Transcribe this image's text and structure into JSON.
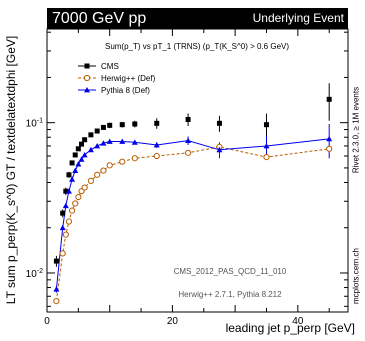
{
  "header": {
    "left": "7000 GeV pp",
    "right": "Underlying Event"
  },
  "side": {
    "ylabel": "LT sum p_perp(K_s^0) GT / textdelatextdphi [GeV]",
    "right_label": "Rivet 2.3.0, ≥ 1M events",
    "site": "mcplots.cern.ch"
  },
  "annotations": {
    "analysis": "CMS_2012_PAS_QCD_11_010",
    "generators": "Herwig++ 2.7.1, Pythia 8.212"
  },
  "chart_data": {
    "type": "line",
    "title": "Sum(p_T) vs pT_1 (TRNS) (p_T(K_S^0) > 0.6 GeV)",
    "xlabel": "leading jet p_perp [GeV]",
    "ylabel": "LT sum p_perp(K_s^0) GT / textdelatextdphi [GeV]",
    "xlim": [
      0,
      48
    ],
    "ylim": [
      0.0055,
      0.42
    ],
    "yscale": "log",
    "xticks": [
      0,
      20,
      40
    ],
    "yticks": [
      0.01,
      0.1
    ],
    "ytick_labels": [
      "10^-2",
      "10^-1"
    ],
    "legend_position": "top-left",
    "series": [
      {
        "name": "CMS",
        "color": "#000000",
        "marker": "square",
        "line": "none",
        "x": [
          1.5,
          2.5,
          3.0,
          3.5,
          4.0,
          4.5,
          5.0,
          5.5,
          6.0,
          7.0,
          8.0,
          9.0,
          10.0,
          12.0,
          14.0,
          17.5,
          22.5,
          27.5,
          35.0,
          45.0
        ],
        "y": [
          0.012,
          0.025,
          0.035,
          0.045,
          0.054,
          0.061,
          0.067,
          0.072,
          0.077,
          0.083,
          0.088,
          0.093,
          0.096,
          0.097,
          0.098,
          0.099,
          0.105,
          0.099,
          0.097,
          0.143
        ],
        "y_err": [
          0.001,
          0.0015,
          0.002,
          0.002,
          0.002,
          0.002,
          0.002,
          0.002,
          0.002,
          0.002,
          0.003,
          0.003,
          0.004,
          0.004,
          0.005,
          0.008,
          0.01,
          0.012,
          0.018,
          0.04
        ]
      },
      {
        "name": "Herwig++ (Def)",
        "color": "#b85c00",
        "marker": "open-circle",
        "line": "dashed",
        "x": [
          1.5,
          2.5,
          3.0,
          3.5,
          4.0,
          4.5,
          5.0,
          5.5,
          6.0,
          7.0,
          8.0,
          9.0,
          10.0,
          12.0,
          14.0,
          17.5,
          22.5,
          27.5,
          35.0,
          45.0
        ],
        "y": [
          0.0065,
          0.0135,
          0.018,
          0.022,
          0.026,
          0.029,
          0.032,
          0.035,
          0.037,
          0.041,
          0.045,
          0.048,
          0.052,
          0.055,
          0.058,
          0.06,
          0.063,
          0.069,
          0.059,
          0.067
        ]
      },
      {
        "name": "Pythia 8 (Def)",
        "color": "#0000ee",
        "marker": "filled-triangle",
        "line": "solid",
        "x": [
          1.5,
          2.5,
          3.0,
          3.5,
          4.0,
          4.5,
          5.0,
          5.5,
          6.0,
          7.0,
          8.0,
          9.0,
          10.0,
          12.0,
          14.0,
          17.5,
          22.5,
          27.5,
          35.0,
          45.0
        ],
        "y": [
          0.0078,
          0.02,
          0.028,
          0.035,
          0.042,
          0.048,
          0.053,
          0.057,
          0.061,
          0.066,
          0.07,
          0.073,
          0.075,
          0.075,
          0.074,
          0.071,
          0.076,
          0.066,
          0.07,
          0.078
        ],
        "y_err": [
          0.0004,
          0.0008,
          0.001,
          0.001,
          0.001,
          0.001,
          0.001,
          0.001,
          0.001,
          0.0015,
          0.0015,
          0.0015,
          0.002,
          0.002,
          0.002,
          0.003,
          0.005,
          0.008,
          0.012,
          0.02
        ]
      }
    ]
  }
}
